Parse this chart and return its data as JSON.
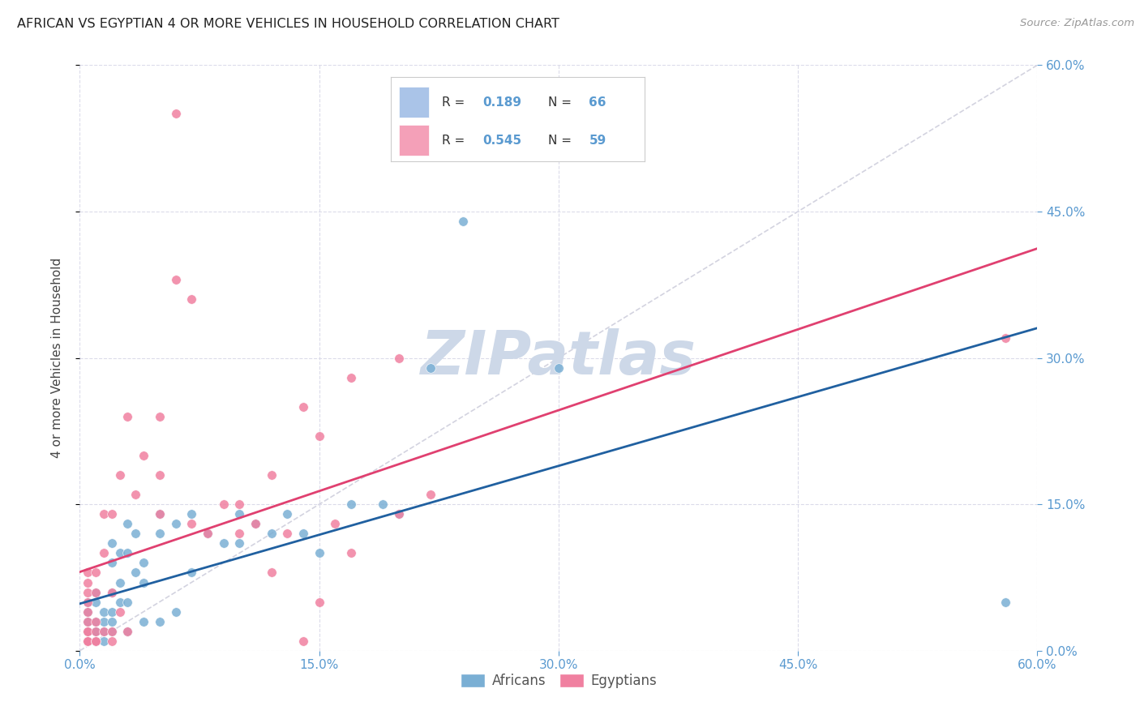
{
  "title": "AFRICAN VS EGYPTIAN 4 OR MORE VEHICLES IN HOUSEHOLD CORRELATION CHART",
  "source": "Source: ZipAtlas.com",
  "ylabel": "4 or more Vehicles in Household",
  "xlim": [
    0.0,
    0.6
  ],
  "ylim": [
    0.0,
    0.6
  ],
  "xtick_vals": [
    0.0,
    0.15,
    0.3,
    0.45,
    0.6
  ],
  "ytick_vals": [
    0.0,
    0.15,
    0.3,
    0.45,
    0.6
  ],
  "legend_color1": "#aac4e8",
  "legend_color2": "#f4a0b8",
  "africans_color": "#7aafd4",
  "egyptians_color": "#f080a0",
  "reg_line_african_color": "#2060a0",
  "reg_line_egyptian_color": "#e04070",
  "watermark": "ZIPatlas",
  "watermark_color": "#cdd8e8",
  "background_color": "#ffffff",
  "grid_color": "#d8d8e8",
  "diag_color": "#c8c8d8",
  "africans_x": [
    0.005,
    0.005,
    0.005,
    0.005,
    0.005,
    0.005,
    0.005,
    0.005,
    0.005,
    0.01,
    0.01,
    0.01,
    0.01,
    0.01,
    0.01,
    0.01,
    0.01,
    0.01,
    0.01,
    0.01,
    0.01,
    0.015,
    0.015,
    0.015,
    0.015,
    0.02,
    0.02,
    0.02,
    0.02,
    0.02,
    0.02,
    0.025,
    0.025,
    0.025,
    0.03,
    0.03,
    0.03,
    0.03,
    0.035,
    0.035,
    0.04,
    0.04,
    0.04,
    0.05,
    0.05,
    0.05,
    0.06,
    0.06,
    0.07,
    0.07,
    0.08,
    0.09,
    0.1,
    0.1,
    0.11,
    0.12,
    0.13,
    0.14,
    0.15,
    0.17,
    0.19,
    0.2,
    0.22,
    0.24,
    0.3,
    0.58
  ],
  "africans_y": [
    0.01,
    0.01,
    0.01,
    0.01,
    0.02,
    0.02,
    0.03,
    0.04,
    0.05,
    0.01,
    0.01,
    0.01,
    0.01,
    0.01,
    0.01,
    0.01,
    0.02,
    0.02,
    0.03,
    0.05,
    0.06,
    0.01,
    0.02,
    0.03,
    0.04,
    0.02,
    0.03,
    0.04,
    0.06,
    0.09,
    0.11,
    0.05,
    0.07,
    0.1,
    0.02,
    0.05,
    0.1,
    0.13,
    0.08,
    0.12,
    0.03,
    0.07,
    0.09,
    0.03,
    0.12,
    0.14,
    0.04,
    0.13,
    0.08,
    0.14,
    0.12,
    0.11,
    0.11,
    0.14,
    0.13,
    0.12,
    0.14,
    0.12,
    0.1,
    0.15,
    0.15,
    0.14,
    0.29,
    0.44,
    0.29,
    0.05
  ],
  "egyptians_x": [
    0.005,
    0.005,
    0.005,
    0.005,
    0.005,
    0.005,
    0.005,
    0.005,
    0.005,
    0.005,
    0.005,
    0.005,
    0.005,
    0.005,
    0.01,
    0.01,
    0.01,
    0.01,
    0.01,
    0.01,
    0.015,
    0.015,
    0.015,
    0.02,
    0.02,
    0.02,
    0.02,
    0.025,
    0.025,
    0.03,
    0.03,
    0.035,
    0.04,
    0.05,
    0.06,
    0.07,
    0.08,
    0.09,
    0.1,
    0.11,
    0.12,
    0.13,
    0.14,
    0.15,
    0.16,
    0.17,
    0.2,
    0.22,
    0.05,
    0.05,
    0.06,
    0.07,
    0.1,
    0.12,
    0.14,
    0.15,
    0.17,
    0.2,
    0.58
  ],
  "egyptians_y": [
    0.01,
    0.01,
    0.01,
    0.01,
    0.01,
    0.01,
    0.02,
    0.02,
    0.03,
    0.04,
    0.05,
    0.06,
    0.07,
    0.08,
    0.01,
    0.01,
    0.02,
    0.03,
    0.06,
    0.08,
    0.02,
    0.1,
    0.14,
    0.01,
    0.02,
    0.06,
    0.14,
    0.04,
    0.18,
    0.02,
    0.24,
    0.16,
    0.2,
    0.24,
    0.38,
    0.13,
    0.12,
    0.15,
    0.12,
    0.13,
    0.08,
    0.12,
    0.01,
    0.05,
    0.13,
    0.1,
    0.14,
    0.16,
    0.14,
    0.18,
    0.55,
    0.36,
    0.15,
    0.18,
    0.25,
    0.22,
    0.28,
    0.3,
    0.32
  ]
}
